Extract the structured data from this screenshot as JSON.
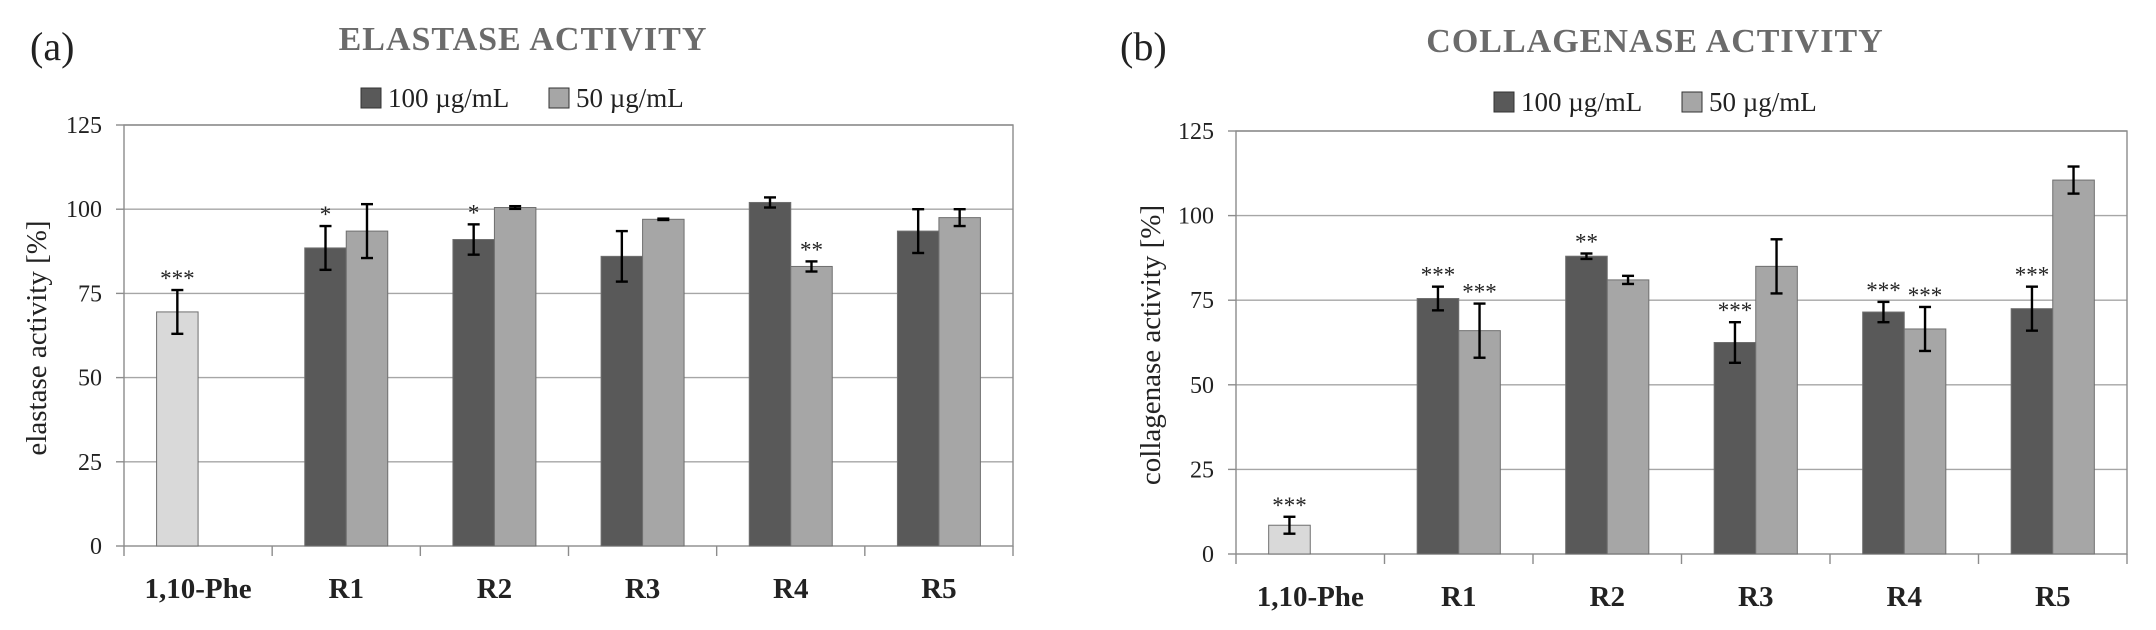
{
  "chart_data": [
    {
      "type": "bar",
      "panel_label": "(a)",
      "title": "ELASTASE ACTIVITY",
      "xlabel": "",
      "ylabel": "elastase activity [%]",
      "ylim": [
        0,
        125
      ],
      "yticks": [
        0,
        25,
        50,
        75,
        100,
        125
      ],
      "grid": true,
      "legend_position": "top-center",
      "categories": [
        "1,10-Phe",
        "R1",
        "R2",
        "R3",
        "R4",
        "R5"
      ],
      "control": {
        "category": "1,10-Phe",
        "value": 69.5,
        "error": 6.5,
        "sig": "***",
        "color": "#d9d9d9"
      },
      "series": [
        {
          "name": "100 µg/mL",
          "color": "#595959",
          "values": [
            null,
            88.5,
            91,
            86,
            102,
            93.5
          ],
          "errors": [
            null,
            6.5,
            4.5,
            7.5,
            1.5,
            6.5
          ],
          "sig": [
            "",
            "*",
            "*",
            "",
            "",
            ""
          ]
        },
        {
          "name": "50 µg/mL",
          "color": "#a6a6a6",
          "values": [
            null,
            93.5,
            100.5,
            97,
            83,
            97.5
          ],
          "errors": [
            null,
            8,
            0.4,
            0.2,
            1.5,
            2.5
          ],
          "sig": [
            "",
            "",
            "",
            "",
            "**",
            ""
          ]
        }
      ]
    },
    {
      "type": "bar",
      "panel_label": "(b)",
      "title": "COLLAGENASE ACTIVITY",
      "xlabel": "",
      "ylabel": "collagenase activity [%]",
      "ylim": [
        0,
        125
      ],
      "yticks": [
        0,
        25,
        50,
        75,
        100,
        125
      ],
      "grid": true,
      "legend_position": "top-center",
      "categories": [
        "1,10-Phe",
        "R1",
        "R2",
        "R3",
        "R4",
        "R5"
      ],
      "control": {
        "category": "1,10-Phe",
        "value": 8.5,
        "error": 2.5,
        "sig": "***",
        "color": "#d9d9d9"
      },
      "series": [
        {
          "name": "100 µg/mL",
          "color": "#595959",
          "values": [
            null,
            75.5,
            88,
            62.5,
            71.5,
            72.5
          ],
          "errors": [
            null,
            3.5,
            0.8,
            6,
            3,
            6.5
          ],
          "sig": [
            "",
            "***",
            "**",
            "***",
            "***",
            "***"
          ]
        },
        {
          "name": "50 µg/mL",
          "color": "#a6a6a6",
          "values": [
            null,
            66,
            81,
            85,
            66.5,
            110.5
          ],
          "errors": [
            null,
            8,
            1.2,
            8,
            6.5,
            4
          ],
          "sig": [
            "",
            "***",
            "",
            "",
            "***",
            ""
          ]
        }
      ]
    }
  ]
}
